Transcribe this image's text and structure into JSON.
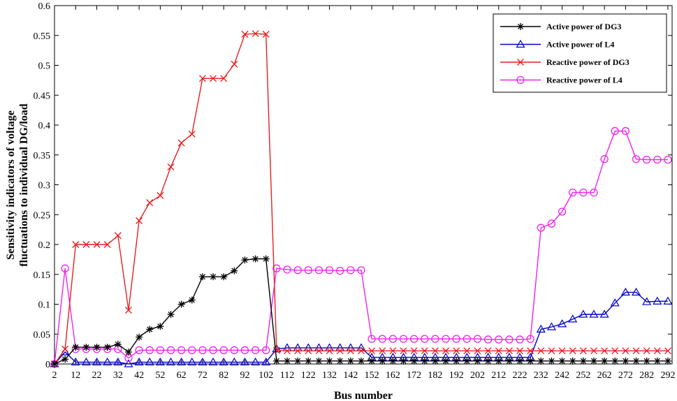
{
  "chart_data": {
    "type": "line",
    "title": "",
    "xlabel": "Bus number",
    "ylabel_line1": "Sensitivity indicators of voltage",
    "ylabel_line2": "fluctuations to individual DG/load",
    "xlim": [
      2,
      294
    ],
    "ylim": [
      0,
      0.6
    ],
    "x_ticks": [
      2,
      12,
      22,
      32,
      42,
      52,
      62,
      72,
      82,
      92,
      102,
      112,
      122,
      132,
      142,
      152,
      162,
      172,
      182,
      192,
      202,
      212,
      222,
      232,
      242,
      252,
      262,
      272,
      282,
      292
    ],
    "y_ticks": [
      0,
      0.05,
      0.1,
      0.15,
      0.2,
      0.25,
      0.3,
      0.35,
      0.4,
      0.45,
      0.5,
      0.55,
      0.6
    ],
    "y_tick_labels": [
      "0",
      "0.05",
      "0.1",
      "0.15",
      "0.2",
      "0.25",
      "0.3",
      "0.35",
      "0.4",
      "0.45",
      "0.5",
      "0.55",
      "0.6"
    ],
    "grid": false,
    "legend_position": "top-right",
    "series": [
      {
        "name": "Active power of DG3",
        "color": "#000000",
        "marker": "asterisk",
        "x": [
          2,
          7,
          12,
          17,
          22,
          27,
          32,
          37,
          42,
          47,
          52,
          57,
          62,
          67,
          72,
          77,
          82,
          87,
          92,
          97,
          102,
          107,
          112,
          117,
          122,
          127,
          132,
          137,
          142,
          147,
          152,
          157,
          162,
          167,
          172,
          177,
          182,
          187,
          192,
          197,
          202,
          207,
          212,
          217,
          222,
          227,
          232,
          237,
          242,
          247,
          252,
          257,
          262,
          267,
          272,
          277,
          282,
          287,
          292
        ],
        "y": [
          0.0,
          0.008,
          0.028,
          0.028,
          0.028,
          0.028,
          0.033,
          0.02,
          0.045,
          0.058,
          0.063,
          0.083,
          0.1,
          0.107,
          0.146,
          0.146,
          0.146,
          0.156,
          0.174,
          0.176,
          0.176,
          0.005,
          0.005,
          0.005,
          0.005,
          0.005,
          0.005,
          0.005,
          0.005,
          0.005,
          0.005,
          0.005,
          0.005,
          0.005,
          0.005,
          0.005,
          0.005,
          0.005,
          0.005,
          0.005,
          0.005,
          0.005,
          0.005,
          0.005,
          0.005,
          0.005,
          0.005,
          0.005,
          0.005,
          0.005,
          0.005,
          0.005,
          0.005,
          0.005,
          0.005,
          0.005,
          0.005,
          0.005,
          0.005
        ]
      },
      {
        "name": "Active power of L4",
        "color": "#0000cc",
        "marker": "triangle",
        "x": [
          2,
          7,
          12,
          17,
          22,
          27,
          32,
          37,
          42,
          47,
          52,
          57,
          62,
          67,
          72,
          77,
          82,
          87,
          92,
          97,
          102,
          107,
          112,
          117,
          122,
          127,
          132,
          137,
          142,
          147,
          152,
          157,
          162,
          167,
          172,
          177,
          182,
          187,
          192,
          197,
          202,
          207,
          212,
          217,
          222,
          227,
          232,
          237,
          242,
          247,
          252,
          257,
          262,
          267,
          272,
          277,
          282,
          287,
          292
        ],
        "y": [
          0.0,
          0.02,
          0.003,
          0.003,
          0.003,
          0.003,
          0.003,
          0.0,
          0.003,
          0.003,
          0.003,
          0.003,
          0.003,
          0.003,
          0.003,
          0.003,
          0.003,
          0.003,
          0.003,
          0.003,
          0.003,
          0.025,
          0.027,
          0.027,
          0.027,
          0.027,
          0.027,
          0.027,
          0.027,
          0.027,
          0.011,
          0.011,
          0.011,
          0.011,
          0.011,
          0.011,
          0.011,
          0.011,
          0.011,
          0.011,
          0.011,
          0.011,
          0.011,
          0.011,
          0.011,
          0.011,
          0.058,
          0.062,
          0.067,
          0.075,
          0.083,
          0.083,
          0.083,
          0.102,
          0.12,
          0.12,
          0.104,
          0.105,
          0.105
        ]
      },
      {
        "name": "Reactive power of DG3",
        "color": "#e82020",
        "marker": "x",
        "x": [
          2,
          7,
          12,
          17,
          22,
          27,
          32,
          37,
          42,
          47,
          52,
          57,
          62,
          67,
          72,
          77,
          82,
          87,
          92,
          97,
          102,
          107,
          112,
          117,
          122,
          127,
          132,
          137,
          142,
          147,
          152,
          157,
          162,
          167,
          172,
          177,
          182,
          187,
          192,
          197,
          202,
          207,
          212,
          217,
          222,
          227,
          232,
          237,
          242,
          247,
          252,
          257,
          262,
          267,
          272,
          277,
          282,
          287,
          292
        ],
        "y": [
          0.0,
          0.025,
          0.2,
          0.2,
          0.2,
          0.2,
          0.215,
          0.09,
          0.24,
          0.27,
          0.282,
          0.33,
          0.37,
          0.385,
          0.478,
          0.478,
          0.478,
          0.502,
          0.552,
          0.553,
          0.552,
          0.023,
          0.022,
          0.022,
          0.022,
          0.022,
          0.022,
          0.022,
          0.022,
          0.022,
          0.022,
          0.022,
          0.022,
          0.022,
          0.022,
          0.022,
          0.022,
          0.022,
          0.022,
          0.022,
          0.022,
          0.022,
          0.022,
          0.022,
          0.022,
          0.022,
          0.022,
          0.022,
          0.022,
          0.022,
          0.022,
          0.022,
          0.022,
          0.022,
          0.022,
          0.022,
          0.022,
          0.022,
          0.022
        ]
      },
      {
        "name": "Reactive power of L4",
        "color": "#ee22ee",
        "marker": "circle",
        "x": [
          2,
          7,
          12,
          17,
          22,
          27,
          32,
          37,
          42,
          47,
          52,
          57,
          62,
          67,
          72,
          77,
          82,
          87,
          92,
          97,
          102,
          107,
          112,
          117,
          122,
          127,
          132,
          137,
          142,
          147,
          152,
          157,
          162,
          167,
          172,
          177,
          182,
          187,
          192,
          197,
          202,
          207,
          212,
          217,
          222,
          227,
          232,
          237,
          242,
          247,
          252,
          257,
          262,
          267,
          272,
          277,
          282,
          287,
          292
        ],
        "y": [
          0.0,
          0.16,
          0.025,
          0.025,
          0.025,
          0.025,
          0.025,
          0.01,
          0.023,
          0.023,
          0.023,
          0.023,
          0.023,
          0.023,
          0.023,
          0.023,
          0.023,
          0.023,
          0.023,
          0.023,
          0.023,
          0.16,
          0.158,
          0.157,
          0.157,
          0.157,
          0.157,
          0.156,
          0.157,
          0.157,
          0.042,
          0.042,
          0.042,
          0.042,
          0.042,
          0.042,
          0.042,
          0.042,
          0.042,
          0.042,
          0.042,
          0.041,
          0.041,
          0.041,
          0.041,
          0.042,
          0.228,
          0.235,
          0.255,
          0.287,
          0.287,
          0.287,
          0.343,
          0.39,
          0.39,
          0.343,
          0.342,
          0.342,
          0.342
        ]
      }
    ]
  }
}
